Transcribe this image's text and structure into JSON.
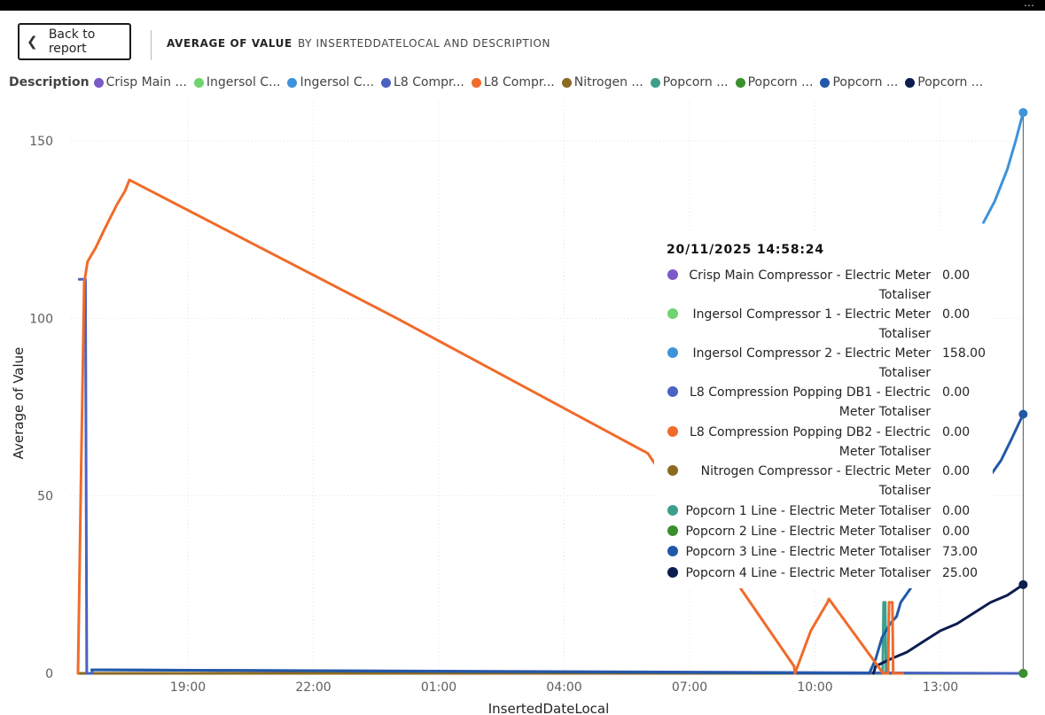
{
  "header": {
    "back_label": "Back to report",
    "title": "AVERAGE OF VALUE",
    "subtitle": "BY INSERTEDDATELOCAL AND DESCRIPTION"
  },
  "legend": {
    "title": "Description",
    "items": [
      {
        "label": "Crisp Main ...",
        "color": "#7b59c7"
      },
      {
        "label": "Ingersol C...",
        "color": "#6fd46f"
      },
      {
        "label": "Ingersol C...",
        "color": "#3d94db"
      },
      {
        "label": "L8 Compr...",
        "color": "#4a62c2"
      },
      {
        "label": "L8 Compr...",
        "color": "#f06b2a"
      },
      {
        "label": "Nitrogen ...",
        "color": "#8c6a20"
      },
      {
        "label": "Popcorn ...",
        "color": "#3d9e8b"
      },
      {
        "label": "Popcorn ...",
        "color": "#3c8f2e"
      },
      {
        "label": "Popcorn ...",
        "color": "#2258a8"
      },
      {
        "label": "Popcorn ...",
        "color": "#0c1d4f"
      }
    ]
  },
  "tooltip": {
    "timestamp": "20/11/2025 14:58:24",
    "rows": [
      {
        "name": "Crisp Main Compressor - Electric Meter Totaliser",
        "value": "0.00",
        "color": "#7b59c7"
      },
      {
        "name": "Ingersol Compressor 1 - Electric Meter Totaliser",
        "value": "0.00",
        "color": "#6fd46f"
      },
      {
        "name": "Ingersol Compressor 2 - Electric Meter Totaliser",
        "value": "158.00",
        "color": "#3d94db"
      },
      {
        "name": "L8 Compression Popping DB1 - Electric Meter Totaliser",
        "value": "0.00",
        "color": "#4a62c2"
      },
      {
        "name": "L8 Compression Popping DB2 - Electric Meter Totaliser",
        "value": "0.00",
        "color": "#f06b2a"
      },
      {
        "name": "Nitrogen Compressor - Electric Meter Totaliser",
        "value": "0.00",
        "color": "#8c6a20"
      },
      {
        "name": "Popcorn 1 Line - Electric Meter Totaliser",
        "value": "0.00",
        "color": "#3d9e8b"
      },
      {
        "name": "Popcorn 2 Line - Electric Meter Totaliser",
        "value": "0.00",
        "color": "#3c8f2e"
      },
      {
        "name": "Popcorn 3 Line - Electric Meter Totaliser",
        "value": "73.00",
        "color": "#2258a8"
      },
      {
        "name": "Popcorn 4 Line - Electric Meter Totaliser",
        "value": "25.00",
        "color": "#0c1d4f"
      }
    ]
  },
  "chart_data": {
    "type": "line",
    "title": "",
    "xlabel": "InsertedDateLocal",
    "ylabel": "Average of Value",
    "x_range_hours": [
      16.3,
      39.0
    ],
    "ylim": [
      0,
      160
    ],
    "x_ticks": [
      {
        "label": "19:00",
        "hour": 19
      },
      {
        "label": "22:00",
        "hour": 22
      },
      {
        "label": "01:00",
        "hour": 25
      },
      {
        "label": "04:00",
        "hour": 28
      },
      {
        "label": "07:00",
        "hour": 31
      },
      {
        "label": "10:00",
        "hour": 34
      },
      {
        "label": "13:00",
        "hour": 37
      }
    ],
    "y_ticks": [
      0,
      50,
      100,
      150
    ],
    "grid": true,
    "hover_hour": 38.98,
    "series": [
      {
        "name": "Crisp Main Compressor - Electric Meter Totaliser",
        "color": "#7b59c7",
        "points": [
          [
            16.4,
            0
          ],
          [
            39.0,
            0
          ]
        ]
      },
      {
        "name": "Ingersol Compressor 1 - Electric Meter Totaliser",
        "color": "#6fd46f",
        "points": [
          [
            16.4,
            0
          ],
          [
            39.0,
            0
          ]
        ]
      },
      {
        "name": "Ingersol Compressor 2 - Electric Meter Totaliser",
        "color": "#3d94db",
        "points": [
          [
            38.03,
            127
          ],
          [
            38.3,
            133
          ],
          [
            38.6,
            142
          ],
          [
            38.8,
            150
          ],
          [
            38.98,
            158
          ]
        ]
      },
      {
        "name": "L8 Compression Popping DB1 - Electric Meter Totaliser",
        "color": "#4a62c2",
        "points": [
          [
            16.4,
            111
          ],
          [
            16.55,
            111
          ],
          [
            16.58,
            0
          ],
          [
            16.7,
            0
          ],
          [
            16.72,
            1
          ],
          [
            39.0,
            0
          ]
        ]
      },
      {
        "name": "L8 Compression Popping DB2 - Electric Meter Totaliser",
        "color": "#f06b2a",
        "points": [
          [
            16.37,
            0
          ],
          [
            16.45,
            60
          ],
          [
            16.52,
            110
          ],
          [
            16.6,
            116
          ],
          [
            16.8,
            120
          ],
          [
            17.0,
            125
          ],
          [
            17.3,
            132
          ],
          [
            17.5,
            136
          ],
          [
            17.6,
            139
          ],
          [
            24.0,
            100
          ],
          [
            30.0,
            62
          ],
          [
            33.5,
            2
          ],
          [
            33.52,
            0
          ],
          [
            33.9,
            12
          ],
          [
            34.3,
            20
          ],
          [
            34.33,
            21
          ],
          [
            35.63,
            0
          ],
          [
            35.75,
            0
          ],
          [
            35.77,
            20
          ],
          [
            35.85,
            20
          ],
          [
            35.87,
            0
          ],
          [
            36.1,
            0
          ]
        ]
      },
      {
        "name": "Nitrogen Compressor - Electric Meter Totaliser",
        "color": "#8c6a20",
        "points": [
          [
            16.4,
            0
          ],
          [
            39.0,
            0
          ]
        ]
      },
      {
        "name": "Popcorn 1 Line - Electric Meter Totaliser",
        "color": "#3d9e8b",
        "points": [
          [
            35.52,
            0
          ],
          [
            35.62,
            0
          ],
          [
            35.64,
            20
          ],
          [
            35.68,
            20
          ],
          [
            35.7,
            0
          ],
          [
            36.1,
            0
          ]
        ]
      },
      {
        "name": "Popcorn 2 Line - Electric Meter Totaliser",
        "color": "#3c8f2e",
        "points": [
          [
            35.4,
            0
          ],
          [
            39.0,
            0
          ]
        ]
      },
      {
        "name": "Popcorn 3 Line - Electric Meter Totaliser",
        "color": "#2258a8",
        "points": [
          [
            16.7,
            1
          ],
          [
            35.3,
            0
          ],
          [
            35.45,
            4
          ],
          [
            35.6,
            10
          ],
          [
            35.8,
            14
          ],
          [
            35.95,
            16
          ],
          [
            36.05,
            20
          ],
          [
            38.45,
            60
          ],
          [
            38.7,
            66
          ],
          [
            38.98,
            73
          ]
        ]
      },
      {
        "name": "Popcorn 4 Line - Electric Meter Totaliser",
        "color": "#0c1d4f",
        "points": [
          [
            35.4,
            0
          ],
          [
            35.45,
            2
          ],
          [
            35.8,
            4
          ],
          [
            36.2,
            6
          ],
          [
            36.6,
            9
          ],
          [
            37.0,
            12
          ],
          [
            37.4,
            14
          ],
          [
            37.8,
            17
          ],
          [
            38.2,
            20
          ],
          [
            38.6,
            22
          ],
          [
            38.98,
            25
          ]
        ]
      }
    ]
  }
}
